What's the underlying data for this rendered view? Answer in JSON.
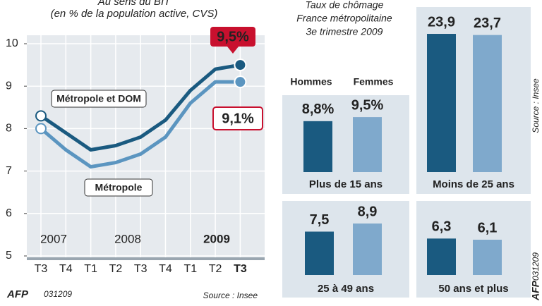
{
  "chart_data": [
    {
      "type": "line",
      "title": "Au sens du BIT",
      "subtitle": "(en % de la population active, CVS)",
      "categories": [
        "T3",
        "T4",
        "T1",
        "T2",
        "T3",
        "T4",
        "T1",
        "T2",
        "T3"
      ],
      "years": [
        "2007",
        "2008",
        "2009"
      ],
      "series": [
        {
          "name": "Métropole et DOM",
          "color": "#1a5a80",
          "values": [
            8.3,
            7.9,
            7.5,
            7.6,
            7.8,
            8.2,
            8.9,
            9.4,
            9.5
          ],
          "value_labels": [
            null,
            null,
            null,
            null,
            null,
            null,
            null,
            null,
            "9,5%"
          ]
        },
        {
          "name": "Métropole",
          "color": "#5b95c0",
          "values": [
            8.0,
            7.5,
            7.1,
            7.2,
            7.4,
            7.8,
            8.6,
            9.1,
            9.1
          ],
          "value_labels": [
            null,
            null,
            null,
            null,
            null,
            null,
            null,
            null,
            "9,1%"
          ]
        }
      ],
      "ylim": [
        5,
        10
      ],
      "yticks": [
        5,
        6,
        7,
        8,
        9,
        10
      ],
      "grid": true
    },
    {
      "type": "bar",
      "title": "Taux de chômage",
      "subtitle": "France métropolitaine",
      "period": "3e trimestre 2009",
      "categories": [
        "Plus de 15 ans",
        "Moins de 25 ans",
        "25 à 49 ans",
        "50 ans et plus"
      ],
      "series": [
        {
          "name": "Hommes",
          "color": "#1a5a80",
          "values": [
            8.8,
            23.9,
            7.5,
            6.3
          ],
          "value_labels": [
            "8,8%",
            "23,9",
            "7,5",
            "6,3"
          ]
        },
        {
          "name": "Femmes",
          "color": "#7fa9cc",
          "values": [
            9.5,
            23.7,
            8.9,
            6.1
          ],
          "value_labels": [
            "9,5%",
            "23,7",
            "8,9",
            "6,1"
          ]
        }
      ]
    }
  ],
  "source": "Source : Insee",
  "credit": "AFP",
  "code": "031209"
}
